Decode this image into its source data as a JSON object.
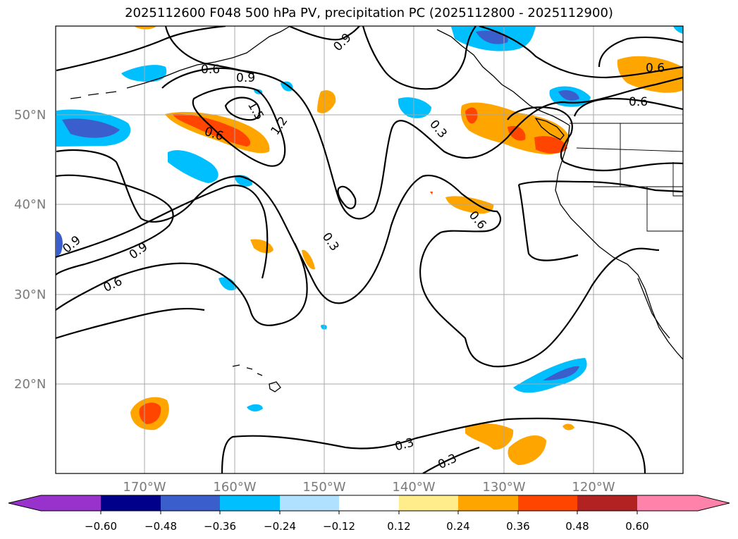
{
  "title": "2025112600 F048 500 hPa PV, precipitation PC (2025112800 - 2025112900)",
  "latitude_labels": [
    "50°N",
    "40°N",
    "30°N",
    "20°N"
  ],
  "longitude_labels": [
    "170°W",
    "160°W",
    "150°W",
    "140°W",
    "130°W",
    "120°W"
  ],
  "pv_contour_labels": [
    "0.6",
    "0.9",
    "0.9",
    "1.5",
    "1.2",
    "0.6",
    "0.3",
    "0.6",
    "0.6",
    "0.6",
    "0.9",
    "0.9",
    "0.6",
    "0.3",
    "0.3",
    "0.3"
  ],
  "colorbar": {
    "tick_labels": [
      "−0.60",
      "−0.48",
      "−0.36",
      "−0.24",
      "−0.12",
      "0.12",
      "0.24",
      "0.36",
      "0.48",
      "0.60"
    ],
    "colors": [
      "#9932cc",
      "#00008b",
      "#3a5fcd",
      "#00bfff",
      "#b0e2ff",
      "#ffffff",
      "#ffec8b",
      "#ffa500",
      "#ff4500",
      "#b22222",
      "#ff82ab"
    ]
  }
}
